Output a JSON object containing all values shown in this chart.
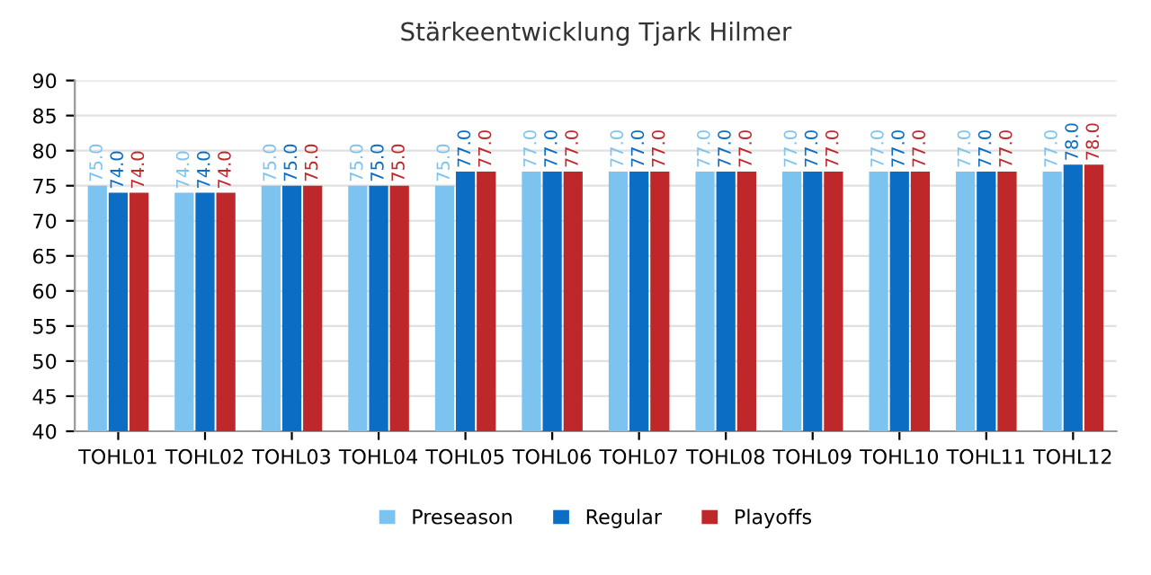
{
  "chart_data": {
    "type": "bar",
    "title": "Stärkeentwicklung Tjark Hilmer",
    "categories": [
      "TOHL01",
      "TOHL02",
      "TOHL03",
      "TOHL04",
      "TOHL05",
      "TOHL06",
      "TOHL07",
      "TOHL08",
      "TOHL09",
      "TOHL10",
      "TOHL11",
      "TOHL12"
    ],
    "series": [
      {
        "name": "Preseason",
        "color": "#7cc4ef",
        "values": [
          75,
          74,
          75,
          75,
          75,
          77,
          77,
          77,
          77,
          77,
          77,
          77
        ],
        "value_labels": [
          "75.0",
          "74.0",
          "75.0",
          "75.0",
          "75.0",
          "77.0",
          "77.0",
          "77.0",
          "77.0",
          "77.0",
          "77.0",
          "77.0"
        ]
      },
      {
        "name": "Regular",
        "color": "#0b6dc3",
        "values": [
          74,
          74,
          75,
          75,
          77,
          77,
          77,
          77,
          77,
          77,
          77,
          78
        ],
        "value_labels": [
          "74.0",
          "74.0",
          "75.0",
          "75.0",
          "77.0",
          "77.0",
          "77.0",
          "77.0",
          "77.0",
          "77.0",
          "77.0",
          "78.0"
        ]
      },
      {
        "name": "Playoffs",
        "color": "#bf282b",
        "values": [
          74,
          74,
          75,
          75,
          77,
          77,
          77,
          77,
          77,
          77,
          77,
          78
        ],
        "value_labels": [
          "74.0",
          "74.0",
          "75.0",
          "75.0",
          "77.0",
          "77.0",
          "77.0",
          "77.0",
          "77.0",
          "77.0",
          "77.0",
          "78.0"
        ]
      }
    ],
    "ylim": [
      40,
      90
    ],
    "yticks": [
      40,
      45,
      50,
      55,
      60,
      65,
      70,
      75,
      80,
      85,
      90
    ],
    "grid": "y",
    "legend": "bottom"
  }
}
